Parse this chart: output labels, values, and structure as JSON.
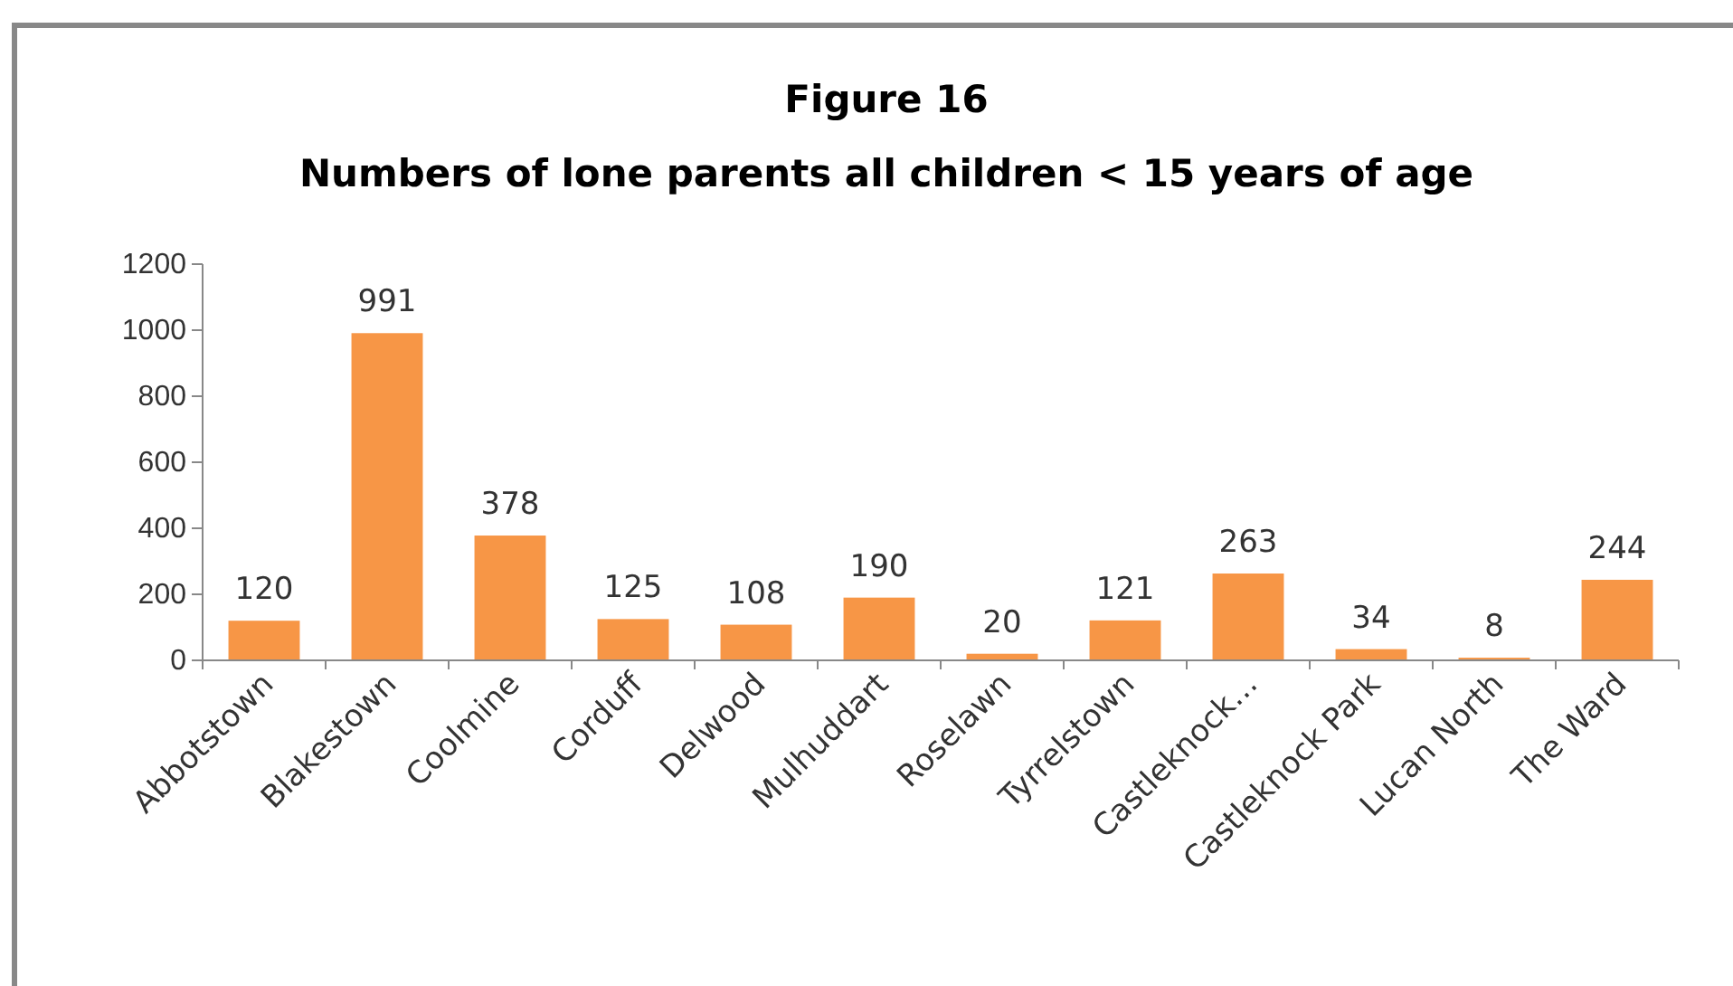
{
  "chart_data": {
    "type": "bar",
    "title": "Figure 16",
    "subtitle": "Numbers of lone parents all children < 15 years of age",
    "categories": [
      "Abbotstown",
      "Blakestown",
      "Coolmine",
      "Corduff",
      "Delwood",
      "Mulhuddart",
      "Roselawn",
      "Tyrrelstown",
      "Castleknock…",
      "Castleknock Park",
      "Lucan North",
      "The Ward"
    ],
    "values": [
      120,
      991,
      378,
      125,
      108,
      190,
      20,
      121,
      263,
      34,
      8,
      244
    ],
    "color": "#f79646",
    "ylim": [
      0,
      1200
    ],
    "yticks": [
      0,
      200,
      400,
      600,
      800,
      1000,
      1200
    ],
    "data_labels": true
  }
}
